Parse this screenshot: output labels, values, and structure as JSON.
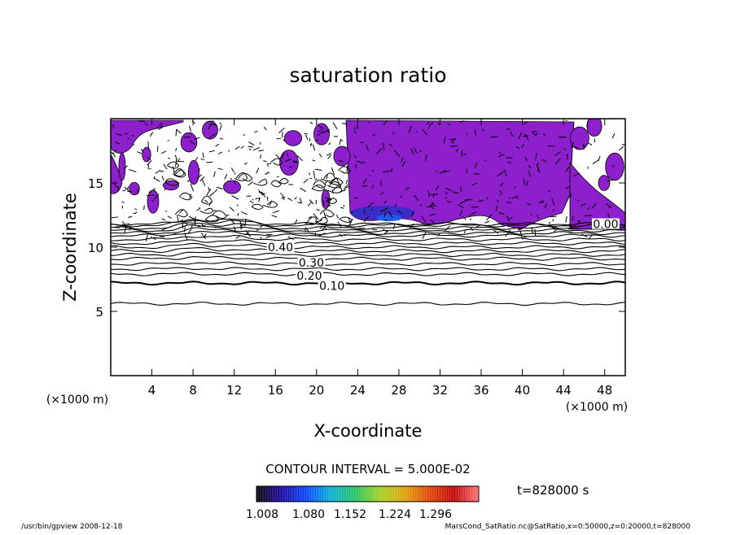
{
  "chart_data": {
    "type": "contour",
    "title": "saturation ratio",
    "xlabel": "X-coordinate",
    "ylabel": "Z-coordinate",
    "x_unit": "(×1000 m)",
    "xlim": [
      0,
      50
    ],
    "ylim": [
      0,
      20
    ],
    "x_ticks": [
      4,
      8,
      12,
      16,
      20,
      24,
      28,
      32,
      36,
      40,
      44,
      48
    ],
    "y_ticks": [
      5,
      10,
      15
    ],
    "contour_lines": [
      {
        "level": "0.10",
        "z": 7.2
      },
      {
        "level": "0.20",
        "z": 8.3
      },
      {
        "level": "0.30",
        "z": 9.1
      },
      {
        "level": "0.40",
        "z": 10.0
      },
      {
        "level": "0.00",
        "z": 11.8
      }
    ],
    "contour_interval_text": "CONTOUR INTERVAL = 5.000E-02",
    "colorbar": {
      "ticks": [
        "1.008",
        "1.080",
        "1.152",
        "1.224",
        "1.296"
      ],
      "colors": [
        "#000000",
        "#1a00a0",
        "#0040ff",
        "#00b0d0",
        "#20c060",
        "#a0d020",
        "#e0a000",
        "#e04000",
        "#c00000",
        "#ff7070"
      ]
    },
    "time_label": "t=828000 s",
    "fill_color": "#8e1fcc"
  },
  "footer": {
    "left": "/usr/bin/gpview   2008-12-18",
    "right": "MarsCond_SatRatio.nc@SatRatio,x=0:50000,z=0:20000,t=828000"
  }
}
